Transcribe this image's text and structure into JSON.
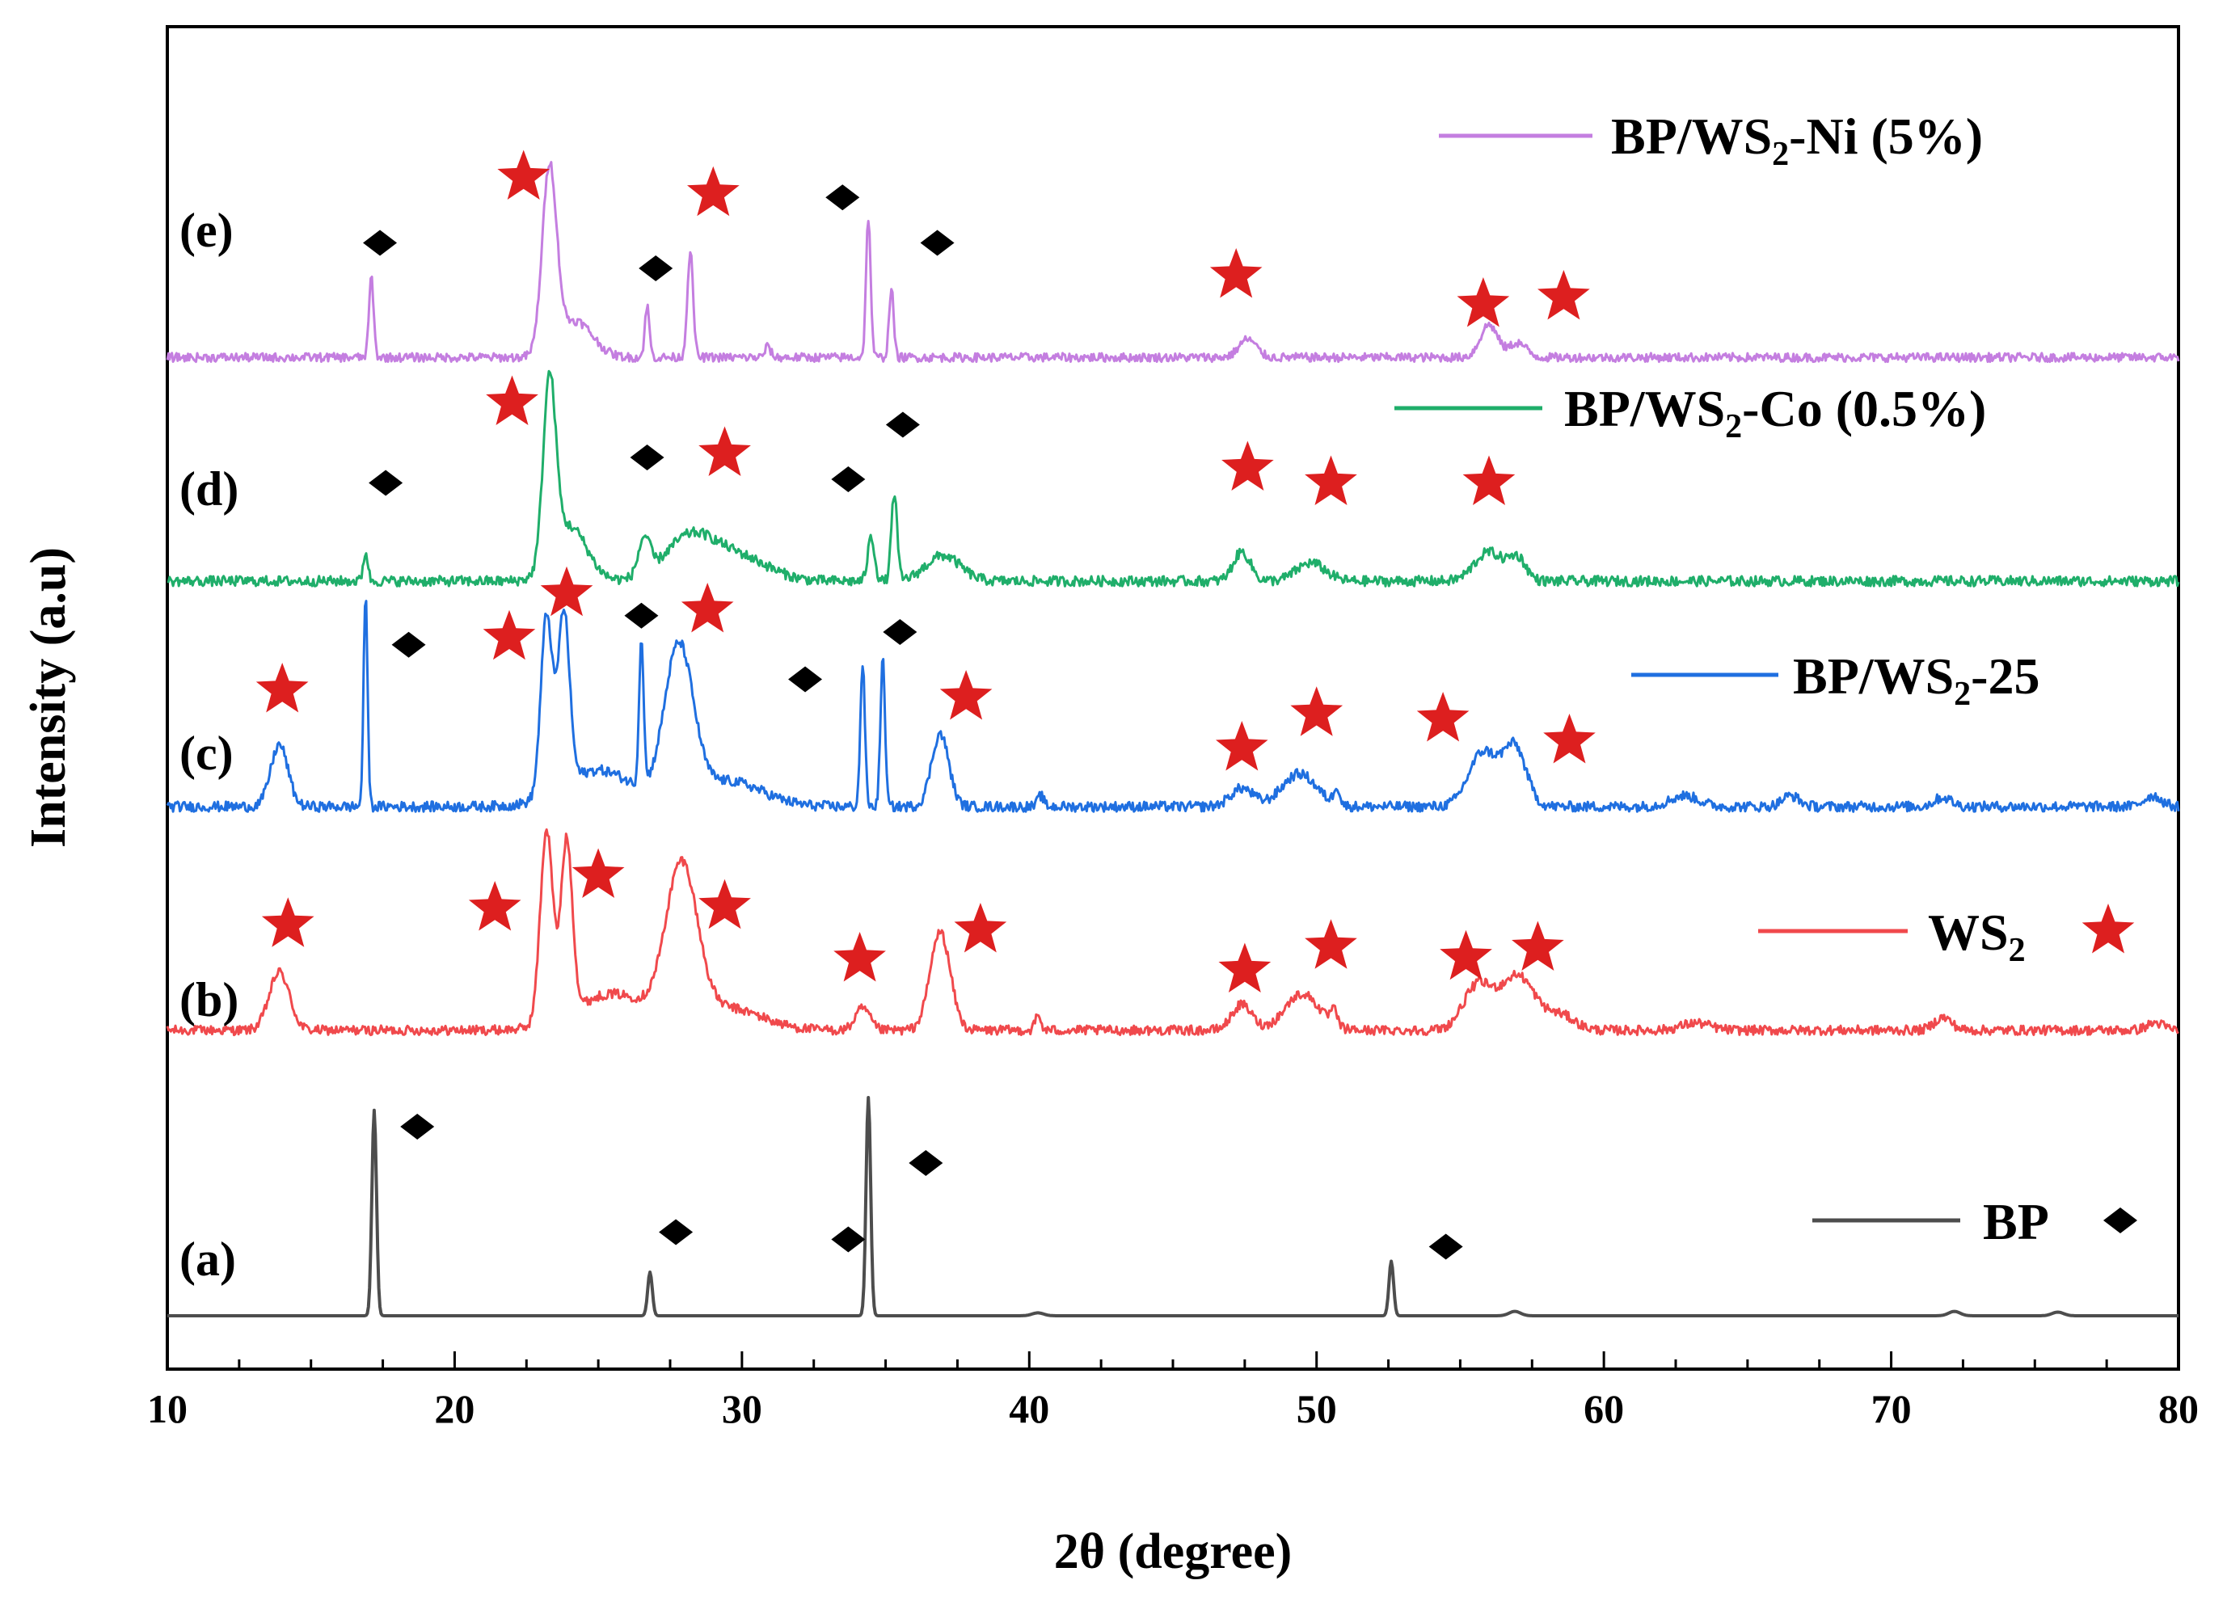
{
  "chart_data": {
    "type": "line",
    "title": "",
    "xlabel": "2θ (degree)",
    "ylabel": "Intensity (a.u)",
    "xlim": [
      10,
      80
    ],
    "x_ticks": [
      10,
      20,
      30,
      40,
      50,
      60,
      70,
      80
    ],
    "colors": {
      "BP": "#4d4d4d",
      "WS2": "#f0494c",
      "BP/WS2-25": "#1f6fe0",
      "BP/WS2-Co (0.5%)": "#1fae6a",
      "BP/WS2-Ni (5%)": "#c47ee0",
      "star": "#dd1f1f",
      "diamond": "#000000"
    },
    "series": [
      {
        "id": "a",
        "tag": "(a)",
        "legend_parts": [
          "BP"
        ],
        "color": "#4d4d4d",
        "baseline": 0.0,
        "noise": 0.0,
        "peaks": [
          [
            17.2,
            5.65,
            0.08
          ],
          [
            26.8,
            1.2,
            0.08
          ],
          [
            34.4,
            6.0,
            0.08
          ],
          [
            52.6,
            1.5,
            0.08
          ],
          [
            40.3,
            0.08,
            0.2
          ],
          [
            56.9,
            0.12,
            0.2
          ],
          [
            72.2,
            0.12,
            0.2
          ],
          [
            75.8,
            0.1,
            0.2
          ]
        ],
        "markers": [
          {
            "type": "diamond",
            "x": 18.7,
            "y": 5.2
          },
          {
            "type": "diamond",
            "x": 27.7,
            "y": 2.3
          },
          {
            "type": "diamond",
            "x": 33.7,
            "y": 2.1
          },
          {
            "type": "diamond",
            "x": 36.4,
            "y": 4.2
          },
          {
            "type": "diamond",
            "x": 54.5,
            "y": 1.9
          }
        ]
      },
      {
        "id": "b",
        "tag": "(b)",
        "legend_parts": [
          "WS",
          "2",
          ""
        ],
        "color": "#f0494c",
        "baseline": 7.85,
        "noise": 0.13,
        "peaks": [
          [
            13.9,
            1.6,
            0.35
          ],
          [
            23.2,
            5.3,
            0.22
          ],
          [
            23.9,
            4.8,
            0.2
          ],
          [
            25.5,
            1.0,
            1.3
          ],
          [
            27.9,
            4.25,
            0.55
          ],
          [
            29.5,
            0.6,
            1.2
          ],
          [
            34.2,
            0.6,
            0.25
          ],
          [
            36.9,
            2.7,
            0.35
          ],
          [
            40.3,
            0.4,
            0.1
          ],
          [
            47.4,
            0.7,
            0.35
          ],
          [
            49.5,
            1.0,
            0.6
          ],
          [
            50.6,
            0.4,
            0.12
          ],
          [
            55.6,
            1.2,
            0.5
          ],
          [
            57.0,
            1.5,
            0.6
          ],
          [
            58.5,
            0.4,
            0.5
          ],
          [
            63.2,
            0.2,
            0.5
          ],
          [
            71.8,
            0.35,
            0.3
          ],
          [
            79.2,
            0.2,
            0.3
          ]
        ],
        "markers": [
          {
            "type": "star",
            "x": 14.2,
            "y": 10.75
          },
          {
            "type": "star",
            "x": 21.4,
            "y": 11.2
          },
          {
            "type": "star",
            "x": 25.0,
            "y": 12.1
          },
          {
            "type": "star",
            "x": 29.4,
            "y": 11.25
          },
          {
            "type": "star",
            "x": 34.1,
            "y": 9.8
          },
          {
            "type": "star",
            "x": 38.3,
            "y": 10.6
          },
          {
            "type": "star",
            "x": 47.5,
            "y": 9.5
          },
          {
            "type": "star",
            "x": 50.5,
            "y": 10.15
          },
          {
            "type": "star",
            "x": 55.2,
            "y": 9.85
          },
          {
            "type": "star",
            "x": 57.7,
            "y": 10.1
          }
        ]
      },
      {
        "id": "c",
        "tag": "(c)",
        "legend_parts": [
          "BP/WS",
          "2",
          "-25"
        ],
        "color": "#1f6fe0",
        "baseline": 14.0,
        "noise": 0.14,
        "peaks": [
          [
            13.9,
            1.7,
            0.3
          ],
          [
            16.9,
            5.75,
            0.07
          ],
          [
            23.2,
            4.95,
            0.2
          ],
          [
            23.8,
            4.8,
            0.2
          ],
          [
            25.0,
            1.0,
            1.2
          ],
          [
            26.5,
            4.0,
            0.08
          ],
          [
            27.8,
            4.2,
            0.5
          ],
          [
            29.5,
            0.7,
            1.2
          ],
          [
            34.2,
            3.9,
            0.08
          ],
          [
            34.9,
            4.05,
            0.08
          ],
          [
            36.9,
            2.0,
            0.3
          ],
          [
            40.4,
            0.3,
            0.1
          ],
          [
            47.4,
            0.5,
            0.4
          ],
          [
            49.4,
            0.9,
            0.6
          ],
          [
            50.7,
            0.5,
            0.1
          ],
          [
            55.8,
            1.5,
            0.5
          ],
          [
            56.9,
            1.6,
            0.4
          ],
          [
            62.8,
            0.3,
            0.5
          ],
          [
            66.5,
            0.3,
            0.3
          ],
          [
            71.8,
            0.25,
            0.3
          ],
          [
            79.1,
            0.3,
            0.3
          ]
        ],
        "markers": [
          {
            "type": "star",
            "x": 14.0,
            "y": 17.2
          },
          {
            "type": "diamond",
            "x": 18.4,
            "y": 18.45
          },
          {
            "type": "star",
            "x": 21.9,
            "y": 18.65
          },
          {
            "type": "star",
            "x": 23.9,
            "y": 19.85
          },
          {
            "type": "diamond",
            "x": 26.5,
            "y": 19.25
          },
          {
            "type": "star",
            "x": 28.8,
            "y": 19.4
          },
          {
            "type": "diamond",
            "x": 32.2,
            "y": 17.5
          },
          {
            "type": "diamond",
            "x": 35.5,
            "y": 18.8
          },
          {
            "type": "star",
            "x": 37.8,
            "y": 17.0
          },
          {
            "type": "star",
            "x": 47.4,
            "y": 15.6
          },
          {
            "type": "star",
            "x": 50.0,
            "y": 16.55
          },
          {
            "type": "star",
            "x": 54.4,
            "y": 16.4
          },
          {
            "type": "star",
            "x": 58.8,
            "y": 15.8
          }
        ]
      },
      {
        "id": "d",
        "tag": "(d)",
        "legend_parts": [
          "BP/WS",
          "2",
          "-Co (0.5%)"
        ],
        "color": "#1fae6a",
        "baseline": 20.2,
        "noise": 0.14,
        "peaks": [
          [
            16.9,
            0.8,
            0.08
          ],
          [
            23.3,
            5.0,
            0.22
          ],
          [
            24.0,
            1.5,
            0.6
          ],
          [
            26.6,
            1.0,
            0.2
          ],
          [
            28.2,
            1.2,
            0.9
          ],
          [
            30.0,
            0.6,
            1.0
          ],
          [
            34.5,
            1.2,
            0.12
          ],
          [
            35.3,
            2.4,
            0.1
          ],
          [
            37.0,
            0.7,
            0.6
          ],
          [
            47.4,
            0.8,
            0.3
          ],
          [
            49.8,
            0.5,
            0.5
          ],
          [
            56.0,
            0.8,
            0.5
          ],
          [
            57.0,
            0.6,
            0.3
          ]
        ],
        "markers": [
          {
            "type": "star",
            "x": 22.0,
            "y": 25.1
          },
          {
            "type": "diamond",
            "x": 17.6,
            "y": 22.9
          },
          {
            "type": "diamond",
            "x": 26.7,
            "y": 23.6
          },
          {
            "type": "star",
            "x": 29.4,
            "y": 23.7
          },
          {
            "type": "diamond",
            "x": 33.7,
            "y": 23.0
          },
          {
            "type": "diamond",
            "x": 35.6,
            "y": 24.5
          },
          {
            "type": "star",
            "x": 47.6,
            "y": 23.3
          },
          {
            "type": "star",
            "x": 50.5,
            "y": 22.9
          },
          {
            "type": "star",
            "x": 56.0,
            "y": 22.9
          }
        ]
      },
      {
        "id": "e",
        "tag": "(e)",
        "legend_parts": [
          "BP/WS",
          "2",
          "-Ni (5%)"
        ],
        "color": "#c47ee0",
        "baseline": 26.35,
        "noise": 0.12,
        "peaks": [
          [
            17.1,
            2.2,
            0.08
          ],
          [
            23.3,
            5.05,
            0.25
          ],
          [
            24.2,
            1.0,
            0.6
          ],
          [
            26.7,
            1.4,
            0.08
          ],
          [
            28.2,
            2.9,
            0.1
          ],
          [
            34.4,
            3.85,
            0.08
          ],
          [
            35.2,
            1.9,
            0.08
          ],
          [
            30.9,
            0.3,
            0.1
          ],
          [
            47.6,
            0.5,
            0.3
          ],
          [
            56.0,
            0.9,
            0.3
          ],
          [
            57.0,
            0.4,
            0.3
          ]
        ],
        "markers": [
          {
            "type": "star",
            "x": 22.4,
            "y": 31.3
          },
          {
            "type": "diamond",
            "x": 17.4,
            "y": 29.5
          },
          {
            "type": "star",
            "x": 29.0,
            "y": 30.85
          },
          {
            "type": "diamond",
            "x": 27.0,
            "y": 28.8
          },
          {
            "type": "diamond",
            "x": 33.5,
            "y": 30.75
          },
          {
            "type": "diamond",
            "x": 36.8,
            "y": 29.5
          },
          {
            "type": "star",
            "x": 47.2,
            "y": 28.6
          },
          {
            "type": "star",
            "x": 55.8,
            "y": 27.8
          },
          {
            "type": "star",
            "x": 58.6,
            "y": 28.0
          }
        ]
      }
    ],
    "legend_markers": [
      {
        "series": "a",
        "type": "diamond"
      },
      {
        "series": "b",
        "type": "star"
      }
    ]
  }
}
